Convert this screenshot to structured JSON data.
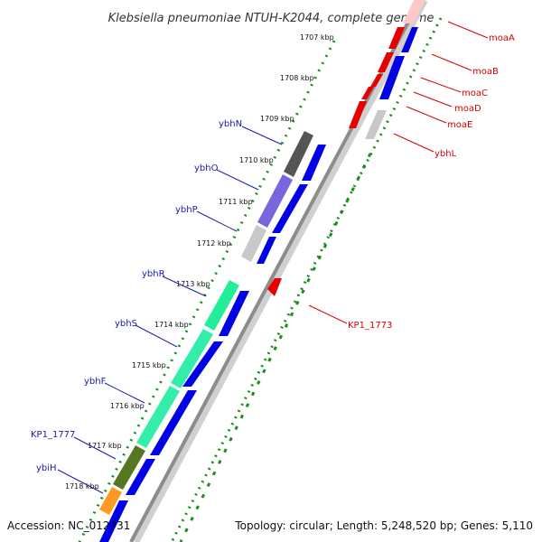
{
  "title": "Klebsiella pneumoniae NTUH-K2044, complete genome",
  "footer": {
    "accession": "Accession: NC_012731",
    "summary": "Topology: circular; Length: 5,248,520 bp; Genes: 5,110"
  },
  "colors": {
    "forward": "#0000e6",
    "reverse": "#e60000",
    "backbone": "#8c8c8c",
    "ticks": "#1e8c1e",
    "blue_label": "#1a1aa6",
    "red_label": "#d40000"
  },
  "kbp_labels": [
    "1707 kbp",
    "1708 kbp",
    "1709 kbp",
    "1710 kbp",
    "1711 kbp",
    "1712 kbp",
    "1713 kbp",
    "1714 kbp",
    "1715 kbp",
    "1716 kbp",
    "1717 kbp",
    "1718 kbp"
  ],
  "genes_left": [
    {
      "name": "ybhN",
      "color": "#555555"
    },
    {
      "name": "ybhO",
      "color": "#7766dd"
    },
    {
      "name": "ybhP",
      "color": "#c8c8c8"
    },
    {
      "name": "ybhR",
      "color": "#22ee99"
    },
    {
      "name": "ybhS",
      "color": "#33eeaa"
    },
    {
      "name": "ybhF",
      "color": "#33eeaa"
    },
    {
      "name": "KP1_1777",
      "color": "#557722"
    },
    {
      "name": "ybiH",
      "color": "#ff9922"
    }
  ],
  "genes_right": [
    {
      "name": "moaA"
    },
    {
      "name": "moaB"
    },
    {
      "name": "moaC"
    },
    {
      "name": "moaD"
    },
    {
      "name": "moaE"
    },
    {
      "name": "ybhL"
    },
    {
      "name": "KP1_1773"
    }
  ]
}
